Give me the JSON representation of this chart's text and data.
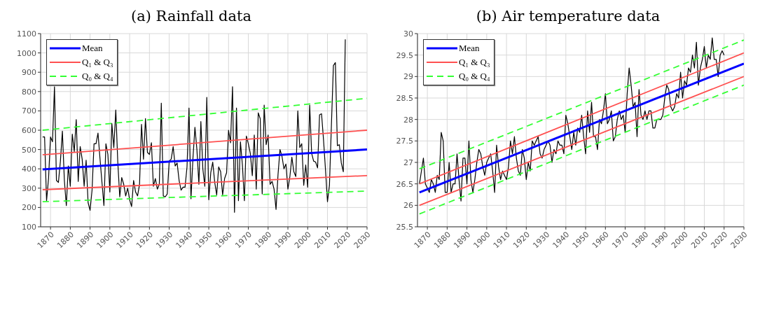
{
  "chart_data": [
    {
      "type": "line",
      "title": "(a) Rainfall data",
      "xlim": [
        1865,
        2030
      ],
      "xticks": [
        1870,
        1880,
        1890,
        1900,
        1910,
        1920,
        1930,
        1940,
        1950,
        1960,
        1970,
        1980,
        1990,
        2000,
        2010,
        2020,
        2030
      ],
      "ylim": [
        100,
        1100
      ],
      "yticks": [
        100,
        200,
        300,
        400,
        500,
        600,
        700,
        800,
        900,
        1000,
        1100
      ],
      "grid": true,
      "legend": "top left",
      "series": [
        {
          "color": "#000000",
          "line_style": "solid",
          "x": [
            1866,
            1867,
            1868,
            1869,
            1870,
            1871,
            1872,
            1873,
            1874,
            1875,
            1876,
            1877,
            1878,
            1879,
            1880,
            1881,
            1882,
            1883,
            1884,
            1885,
            1886,
            1887,
            1888,
            1889,
            1890,
            1891,
            1892,
            1893,
            1894,
            1895,
            1896,
            1897,
            1898,
            1899,
            1900,
            1901,
            1902,
            1903,
            1904,
            1905,
            1906,
            1907,
            1908,
            1909,
            1910,
            1911,
            1912,
            1913,
            1914,
            1915,
            1916,
            1917,
            1918,
            1919,
            1920,
            1921,
            1922,
            1923,
            1924,
            1925,
            1926,
            1927,
            1928,
            1929,
            1930,
            1931,
            1932,
            1933,
            1934,
            1935,
            1936,
            1937,
            1938,
            1939,
            1940,
            1941,
            1942,
            1943,
            1944,
            1945,
            1946,
            1947,
            1948,
            1949,
            1950,
            1951,
            1952,
            1953,
            1954,
            1955,
            1956,
            1957,
            1958,
            1959,
            1960,
            1961,
            1962,
            1963,
            1964,
            1965,
            1966,
            1967,
            1968,
            1969,
            1970,
            1971,
            1972,
            1973,
            1974,
            1975,
            1976,
            1977,
            1978,
            1979,
            1980,
            1981,
            1982,
            1983,
            1984,
            1985,
            1986,
            1987,
            1988,
            1989,
            1990,
            1991,
            1992,
            1993,
            1994,
            1995,
            1996,
            1997,
            1998,
            1999,
            2000,
            2001,
            2002,
            2003,
            2004,
            2005,
            2006,
            2007,
            2008,
            2009,
            2010,
            2011,
            2012,
            2013,
            2014,
            2015,
            2016,
            2017,
            2018,
            2019
          ],
          "values": [
            565,
            565,
            235,
            350,
            565,
            540,
            825,
            340,
            330,
            440,
            595,
            340,
            210,
            415,
            310,
            580,
            490,
            655,
            335,
            515,
            450,
            310,
            445,
            225,
            185,
            290,
            530,
            530,
            585,
            455,
            330,
            210,
            530,
            475,
            280,
            635,
            510,
            705,
            435,
            255,
            355,
            320,
            260,
            300,
            240,
            205,
            340,
            280,
            260,
            320,
            630,
            450,
            660,
            485,
            475,
            535,
            310,
            350,
            295,
            320,
            740,
            260,
            255,
            270,
            440,
            450,
            515,
            415,
            430,
            340,
            290,
            305,
            305,
            410,
            715,
            245,
            455,
            615,
            500,
            320,
            645,
            400,
            310,
            770,
            240,
            380,
            435,
            330,
            265,
            410,
            385,
            265,
            350,
            380,
            600,
            535,
            825,
            175,
            715,
            235,
            540,
            420,
            235,
            570,
            530,
            480,
            365,
            575,
            295,
            690,
            660,
            270,
            730,
            525,
            575,
            320,
            335,
            295,
            190,
            370,
            500,
            465,
            400,
            425,
            295,
            360,
            460,
            385,
            360,
            700,
            510,
            530,
            315,
            420,
            305,
            730,
            480,
            440,
            435,
            405,
            680,
            685,
            550,
            395,
            230,
            315,
            630,
            935,
            950,
            520,
            525,
            430,
            385,
            1070
          ]
        },
        {
          "name": "Mean",
          "color": "#0000ff",
          "line_style": "solid",
          "x": [
            1866,
            2030
          ],
          "values": [
            397,
            500
          ]
        },
        {
          "name": "Q₁ & Q₃",
          "color": "#ff5050",
          "line_style": "solid",
          "x": [
            1866,
            2030
          ],
          "values": [
            473,
            600
          ]
        },
        {
          "color": "#ff5050",
          "line_style": "solid",
          "x": [
            1866,
            2030
          ],
          "values": [
            292,
            365
          ]
        },
        {
          "name": "Q₀ & Q₄",
          "color": "#33ff33",
          "line_style": "dashed",
          "x": [
            1866,
            2030
          ],
          "values": [
            600,
            765
          ]
        },
        {
          "color": "#33ff33",
          "line_style": "dashed",
          "x": [
            1866,
            2030
          ],
          "values": [
            230,
            285
          ]
        }
      ]
    },
    {
      "type": "line",
      "title": "(b) Air temperature data",
      "xlim": [
        1865,
        2030
      ],
      "xticks": [
        1870,
        1880,
        1890,
        1900,
        1910,
        1920,
        1930,
        1940,
        1950,
        1960,
        1970,
        1980,
        1990,
        2000,
        2010,
        2020,
        2030
      ],
      "ylim": [
        25.5,
        30
      ],
      "yticks": [
        25.5,
        26,
        26.5,
        27,
        27.5,
        28,
        28.5,
        29,
        29.5,
        30
      ],
      "grid": true,
      "legend": "top left",
      "series": [
        {
          "color": "#000000",
          "line_style": "solid",
          "x": [
            1866,
            1867,
            1868,
            1869,
            1870,
            1871,
            1872,
            1873,
            1874,
            1875,
            1876,
            1877,
            1878,
            1879,
            1880,
            1881,
            1882,
            1883,
            1884,
            1885,
            1886,
            1887,
            1888,
            1889,
            1890,
            1891,
            1892,
            1893,
            1894,
            1895,
            1896,
            1897,
            1898,
            1899,
            1900,
            1901,
            1902,
            1903,
            1904,
            1905,
            1906,
            1907,
            1908,
            1909,
            1910,
            1911,
            1912,
            1913,
            1914,
            1915,
            1916,
            1917,
            1918,
            1919,
            1920,
            1921,
            1922,
            1923,
            1924,
            1925,
            1926,
            1927,
            1928,
            1929,
            1930,
            1931,
            1932,
            1933,
            1934,
            1935,
            1936,
            1937,
            1938,
            1939,
            1940,
            1941,
            1942,
            1943,
            1944,
            1945,
            1946,
            1947,
            1948,
            1949,
            1950,
            1951,
            1952,
            1953,
            1954,
            1955,
            1956,
            1957,
            1958,
            1959,
            1960,
            1961,
            1962,
            1963,
            1964,
            1965,
            1966,
            1967,
            1968,
            1969,
            1970,
            1971,
            1972,
            1973,
            1974,
            1975,
            1976,
            1977,
            1978,
            1979,
            1980,
            1981,
            1982,
            1983,
            1984,
            1985,
            1986,
            1987,
            1988,
            1989,
            1990,
            1991,
            1992,
            1993,
            1994,
            1995,
            1996,
            1997,
            1998,
            1999,
            2000,
            2001,
            2002,
            2003,
            2004,
            2005,
            2006,
            2007,
            2008,
            2009,
            2010,
            2011,
            2012,
            2013,
            2014,
            2015,
            2016,
            2017,
            2018,
            2019,
            2020
          ],
          "values": [
            26.5,
            26.8,
            27.1,
            26.5,
            26.4,
            26.3,
            26.6,
            26.5,
            26.3,
            26.7,
            26.6,
            27.7,
            27.5,
            26.3,
            26.3,
            27.0,
            26.3,
            26.5,
            26.5,
            27.2,
            26.6,
            26.1,
            27.1,
            27.1,
            26.5,
            27.5,
            26.6,
            26.3,
            26.6,
            27.0,
            27.3,
            27.2,
            26.9,
            26.7,
            27.0,
            27.1,
            27.2,
            26.8,
            26.3,
            27.4,
            26.9,
            26.6,
            26.8,
            26.7,
            26.6,
            26.9,
            27.5,
            27.2,
            27.6,
            27.1,
            26.8,
            26.7,
            27.3,
            27.1,
            26.6,
            27.0,
            26.8,
            27.5,
            27.4,
            27.5,
            27.6,
            27.2,
            27.1,
            27.3,
            27.4,
            27.5,
            27.4,
            27.0,
            27.3,
            27.2,
            27.5,
            27.4,
            27.4,
            27.2,
            28.1,
            27.9,
            27.6,
            27.3,
            27.7,
            27.4,
            27.8,
            27.7,
            28.1,
            27.6,
            27.2,
            28.2,
            27.7,
            28.4,
            27.6,
            27.6,
            27.3,
            28.0,
            27.9,
            28.2,
            28.6,
            27.9,
            28.0,
            28.2,
            27.5,
            27.6,
            28.0,
            28.2,
            28.0,
            28.1,
            27.7,
            28.6,
            29.2,
            28.8,
            28.3,
            28.4,
            27.6,
            28.7,
            28.1,
            28.0,
            28.2,
            28.0,
            28.2,
            28.2,
            27.8,
            27.8,
            28.0,
            28.0,
            28.0,
            28.1,
            28.5,
            28.8,
            28.7,
            28.3,
            28.2,
            28.3,
            28.6,
            28.5,
            29.1,
            28.5,
            28.9,
            28.8,
            29.2,
            29.1,
            29.5,
            29.2,
            29.8,
            28.8,
            29.2,
            29.4,
            29.7,
            29.2,
            29.5,
            29.4,
            29.9,
            29.4,
            29.4,
            29.0,
            29.5,
            29.6,
            29.5
          ]
        },
        {
          "name": "Mean",
          "color": "#0000ff",
          "line_style": "solid",
          "x": [
            1866,
            2030
          ],
          "values": [
            26.3,
            29.3
          ]
        },
        {
          "name": "Q₁ & Q₃",
          "color": "#ff5050",
          "line_style": "solid",
          "x": [
            1866,
            2030
          ],
          "values": [
            26.5,
            29.55
          ]
        },
        {
          "color": "#ff5050",
          "line_style": "solid",
          "x": [
            1866,
            2030
          ],
          "values": [
            26.0,
            29.0
          ]
        },
        {
          "name": "Q₀ & Q₄",
          "color": "#33ff33",
          "line_style": "dashed",
          "x": [
            1866,
            2030
          ],
          "values": [
            26.85,
            29.85
          ]
        },
        {
          "color": "#33ff33",
          "line_style": "dashed",
          "x": [
            1866,
            2030
          ],
          "values": [
            25.8,
            28.8
          ]
        }
      ]
    }
  ]
}
